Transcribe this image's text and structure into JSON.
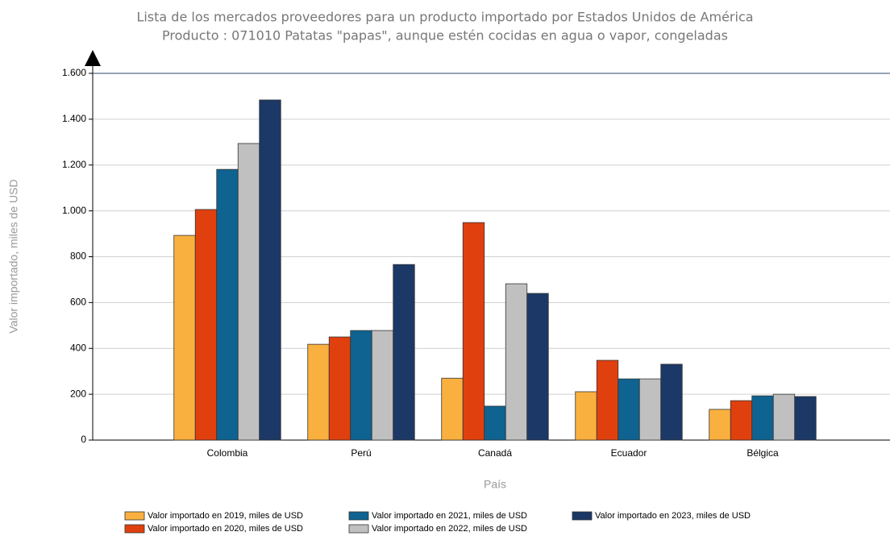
{
  "chart_data": {
    "type": "bar",
    "title": "Lista de los mercados proveedores para un producto importado por Estados Unidos de América",
    "subtitle": "Producto : 071010 Patatas \"papas\", aunque estén cocidas en agua o vapor, congeladas",
    "x_label": "País",
    "y_label": "Valor importado, miles de USD",
    "categories": [
      "Colombia",
      "Perú",
      "Canadá",
      "Ecuador",
      "Bélgica"
    ],
    "series": [
      {
        "name": "Valor importado en 2019, miles de USD",
        "color": "#f9b03f",
        "values": [
          893,
          418,
          270,
          211,
          134
        ]
      },
      {
        "name": "Valor importado en 2020, miles de USD",
        "color": "#e0400e",
        "values": [
          1006,
          450,
          949,
          348,
          172
        ]
      },
      {
        "name": "Valor importado en 2021, miles de USD",
        "color": "#0e6391",
        "values": [
          1181,
          478,
          148,
          267,
          193
        ]
      },
      {
        "name": "Valor importado en 2022, miles de USD",
        "color": "#c0c0c0",
        "values": [
          1294,
          478,
          682,
          267,
          200
        ]
      },
      {
        "name": "Valor importado en 2023, miles de USD",
        "color": "#1b3866",
        "values": [
          1484,
          766,
          640,
          331,
          190
        ]
      }
    ],
    "ylim": [
      0,
      1600
    ],
    "yticks": [
      0,
      200,
      400,
      600,
      800,
      {
        "value": 1000,
        "label": "1.000"
      },
      {
        "value": 1200,
        "label": "1.200"
      },
      {
        "value": 1400,
        "label": "1.400"
      },
      {
        "value": 1600,
        "label": "1.600"
      }
    ],
    "grid": true
  }
}
